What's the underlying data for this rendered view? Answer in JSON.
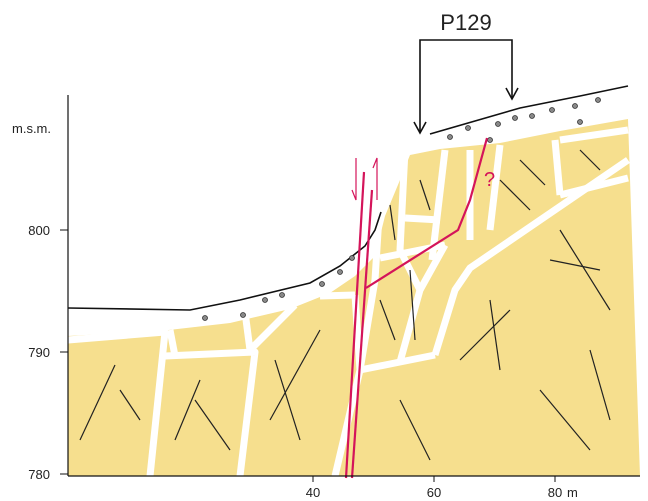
{
  "title": "P129",
  "y_axis": {
    "label": "m.s.m.",
    "ticks": [
      800,
      790,
      780
    ]
  },
  "x_axis": {
    "ticks": [
      40,
      60,
      80
    ],
    "unit": "m"
  },
  "annotation": "?"
}
